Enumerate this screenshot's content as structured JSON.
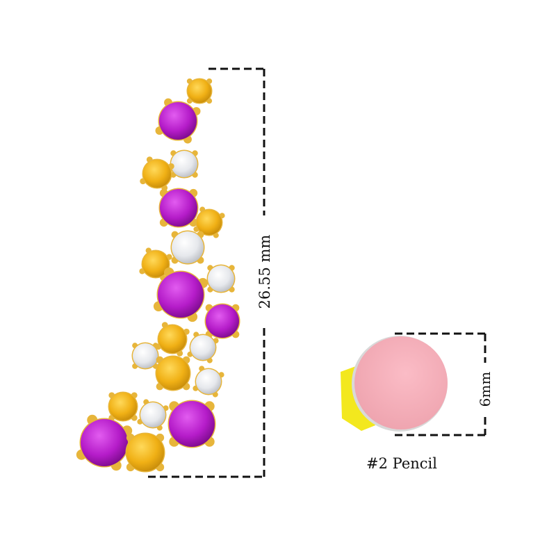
{
  "earring": {
    "height_label": "26.55 mm",
    "colors": {
      "gold": "#e7b53a",
      "amethyst": "#b51cc9",
      "citrine": "#f2b51a",
      "diamond": "#eef0f2"
    }
  },
  "reference": {
    "size_label": "6mm",
    "caption": "#2 Pencil",
    "colors": {
      "eraser": "#f4aab5",
      "pencil_body": "#f3e81e"
    }
  }
}
